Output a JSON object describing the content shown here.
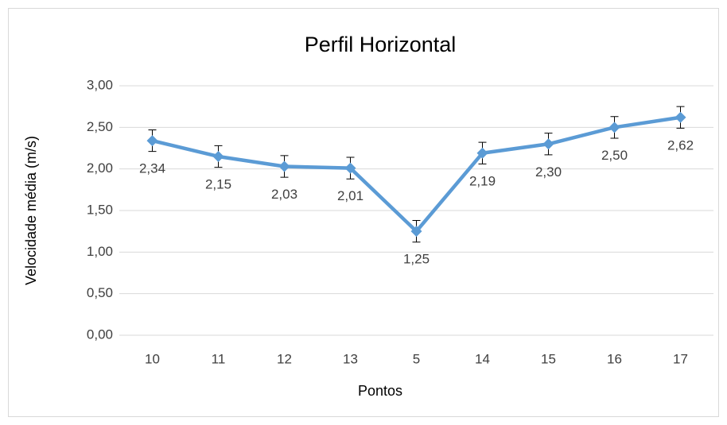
{
  "chart_data": {
    "type": "line",
    "title": "Perfil Horizontal",
    "x_label": "Pontos",
    "y_label": "Velocidade média (m/s)",
    "categories": [
      "10",
      "11",
      "12",
      "13",
      "5",
      "14",
      "15",
      "16",
      "17"
    ],
    "values": [
      2.34,
      2.15,
      2.03,
      2.01,
      1.25,
      2.19,
      2.3,
      2.5,
      2.62
    ],
    "value_labels": [
      "2,34",
      "2,15",
      "2,03",
      "2,01",
      "1,25",
      "2,19",
      "2,30",
      "2,50",
      "2,62"
    ],
    "errors": [
      0.13,
      0.13,
      0.13,
      0.13,
      0.13,
      0.13,
      0.13,
      0.13,
      0.13
    ],
    "color": "#5b9bd5",
    "ylim": [
      0,
      3
    ],
    "yticks": [
      {
        "value": 0,
        "label": "0,00"
      },
      {
        "value": 0.5,
        "label": "0,50"
      },
      {
        "value": 1,
        "label": "1,00"
      },
      {
        "value": 1.5,
        "label": "1,50"
      },
      {
        "value": 2,
        "label": "2,00"
      },
      {
        "value": 2.5,
        "label": "2,50"
      },
      {
        "value": 3,
        "label": "3,00"
      }
    ],
    "grid": true
  }
}
